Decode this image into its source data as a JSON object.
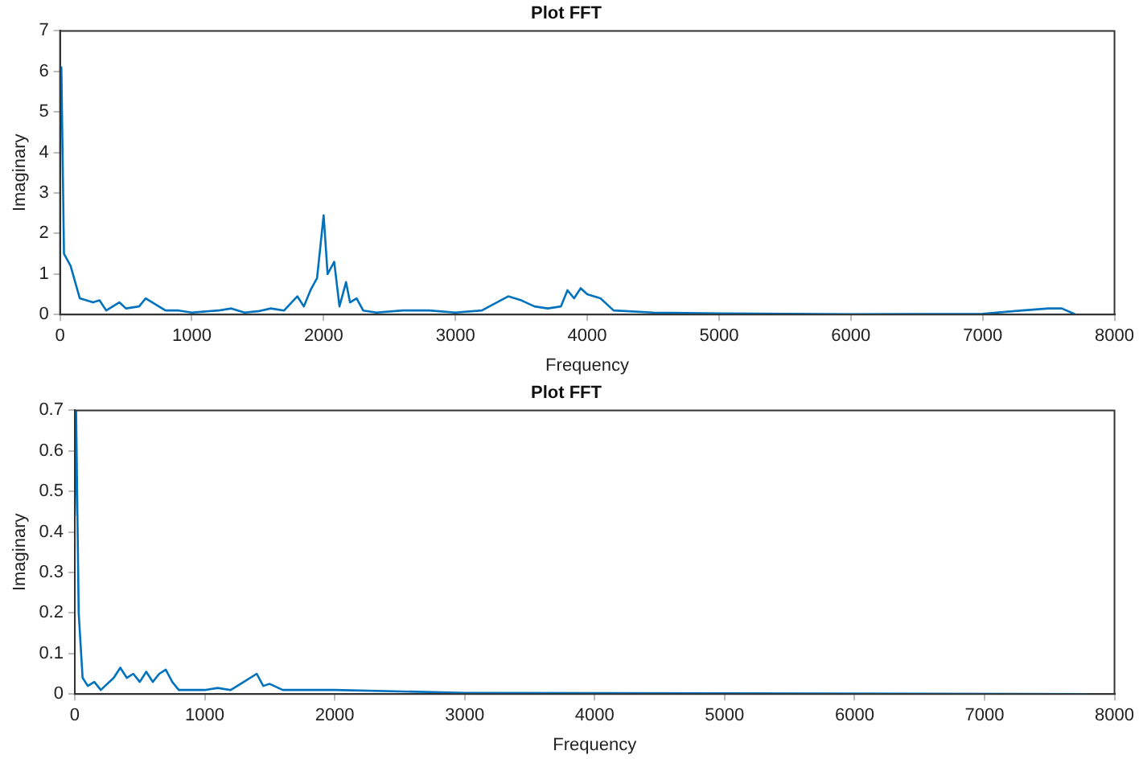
{
  "chart_data": [
    {
      "type": "line",
      "title": "Plot FFT",
      "xlabel": "Frequency",
      "ylabel": "Imaginary",
      "xlim": [
        0,
        8000
      ],
      "xticks": [
        0,
        1000,
        2000,
        3000,
        4000,
        5000,
        6000,
        7000,
        8000
      ],
      "ylim": [
        0,
        7
      ],
      "yticks": [
        0,
        1,
        2,
        3,
        4,
        5,
        6,
        7
      ],
      "grid": false,
      "legend": false,
      "marker": "none",
      "line_style": "solid",
      "series": [
        {
          "color": "#0072bd",
          "x": [
            0,
            10,
            30,
            80,
            150,
            250,
            300,
            350,
            450,
            500,
            600,
            650,
            700,
            800,
            900,
            1000,
            1200,
            1300,
            1400,
            1500,
            1600,
            1700,
            1800,
            1850,
            1900,
            1950,
            2000,
            2030,
            2080,
            2120,
            2170,
            2200,
            2250,
            2300,
            2400,
            2600,
            2800,
            3000,
            3200,
            3400,
            3500,
            3600,
            3700,
            3800,
            3850,
            3900,
            3950,
            4000,
            4100,
            4200,
            4500,
            5000,
            6000,
            7000,
            7300,
            7500,
            7600,
            7700
          ],
          "values": [
            6.1,
            6.1,
            1.5,
            1.2,
            0.4,
            0.3,
            0.35,
            0.1,
            0.3,
            0.15,
            0.2,
            0.4,
            0.3,
            0.1,
            0.1,
            0.05,
            0.1,
            0.15,
            0.05,
            0.08,
            0.15,
            0.1,
            0.45,
            0.2,
            0.6,
            0.9,
            2.45,
            1.0,
            1.3,
            0.2,
            0.8,
            0.3,
            0.4,
            0.1,
            0.05,
            0.1,
            0.1,
            0.05,
            0.1,
            0.45,
            0.35,
            0.2,
            0.15,
            0.2,
            0.6,
            0.4,
            0.65,
            0.5,
            0.4,
            0.1,
            0.05,
            0.03,
            0.01,
            0.02,
            0.1,
            0.15,
            0.15,
            0.01
          ]
        }
      ]
    },
    {
      "type": "line",
      "title": "Plot FFT",
      "xlabel": "Frequency",
      "ylabel": "Imaginary",
      "xlim": [
        0,
        8000
      ],
      "xticks": [
        0,
        1000,
        2000,
        3000,
        4000,
        5000,
        6000,
        7000,
        8000
      ],
      "ylim": [
        0,
        0.7
      ],
      "yticks": [
        0,
        0.1,
        0.2,
        0.3,
        0.4,
        0.5,
        0.6,
        0.7
      ],
      "grid": false,
      "legend": false,
      "marker": "none",
      "line_style": "solid",
      "series": [
        {
          "color": "#0072bd",
          "x": [
            0,
            10,
            30,
            60,
            100,
            150,
            200,
            300,
            350,
            400,
            450,
            500,
            550,
            600,
            650,
            700,
            750,
            800,
            1000,
            1100,
            1200,
            1300,
            1400,
            1450,
            1500,
            1600,
            1800,
            2000,
            3000,
            5000,
            7800
          ],
          "values": [
            0.44,
            0.7,
            0.2,
            0.04,
            0.02,
            0.03,
            0.01,
            0.04,
            0.065,
            0.04,
            0.05,
            0.03,
            0.055,
            0.03,
            0.05,
            0.06,
            0.03,
            0.01,
            0.01,
            0.015,
            0.01,
            0.03,
            0.05,
            0.02,
            0.025,
            0.01,
            0.01,
            0.01,
            0.003,
            0.002,
            0
          ]
        }
      ]
    }
  ]
}
